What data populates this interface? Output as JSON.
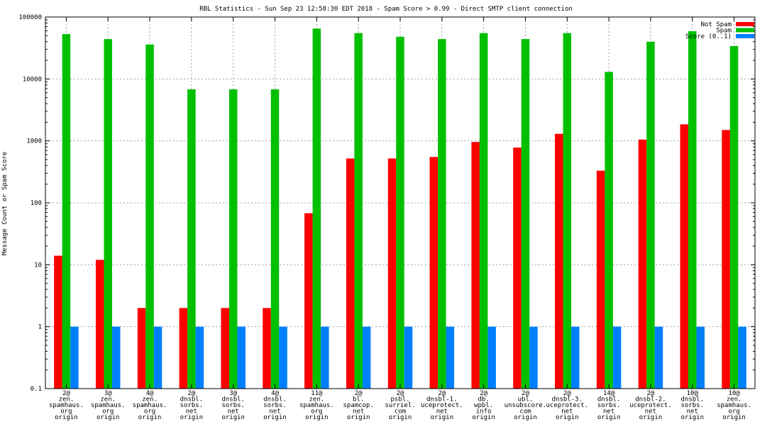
{
  "chart_data": {
    "type": "bar",
    "title": "RBL Statistics - Sun Sep 23 12:58:30 EDT 2018 - Spam Score > 0.99 - Direct SMTP client connection",
    "ylabel": "Message Count or Spam Score",
    "xlabel": "",
    "yscale": "log",
    "ylim": [
      0.1,
      100000
    ],
    "yticks": [
      "0.1",
      "1",
      "10",
      "100",
      "1000",
      "10000",
      "100000"
    ],
    "grid": true,
    "legend_position": "top-right",
    "categories": [
      [
        "2@",
        "zen.",
        "spamhaus.",
        "org",
        "origin"
      ],
      [
        "3@",
        "zen.",
        "spamhaus.",
        "org",
        "origin"
      ],
      [
        "4@",
        "zen.",
        "spamhaus.",
        "org",
        "origin"
      ],
      [
        "2@",
        "dnsbl.",
        "sorbs.",
        "net",
        "origin"
      ],
      [
        "3@",
        "dnsbl.",
        "sorbs.",
        "net",
        "origin"
      ],
      [
        "4@",
        "dnsbl.",
        "sorbs.",
        "net",
        "origin"
      ],
      [
        "11@",
        "zen.",
        "spamhaus.",
        "org",
        "origin"
      ],
      [
        "2@",
        "bl.",
        "spamcop.",
        "net",
        "origin"
      ],
      [
        "2@",
        "psbl.",
        "surriel.",
        "com",
        "origin"
      ],
      [
        "2@",
        "dnsbl-1.",
        "uceprotect.",
        "net",
        "origin"
      ],
      [
        "2@",
        "db.",
        "wpbl.",
        "info",
        "origin"
      ],
      [
        "2@",
        "ubl.",
        "unsubscore.",
        "com",
        "origin"
      ],
      [
        "2@",
        "dnsbl-3.",
        "uceprotect.",
        "net",
        "origin"
      ],
      [
        "14@",
        "dnsbl.",
        "sorbs.",
        "net",
        "origin"
      ],
      [
        "2@",
        "dnsbl-2.",
        "uceprotect.",
        "net",
        "origin"
      ],
      [
        "10@",
        "dnsbl.",
        "sorbs.",
        "net",
        "origin"
      ],
      [
        "10@",
        "zen.",
        "spamhaus.",
        "org",
        "origin"
      ]
    ],
    "series": [
      {
        "name": "Not Spam",
        "color": "#ff0000",
        "values": [
          14,
          12,
          2,
          2,
          2,
          2,
          68,
          520,
          520,
          550,
          960,
          780,
          1300,
          330,
          1050,
          1850,
          1500
        ]
      },
      {
        "name": "Spam",
        "color": "#00c000",
        "values": [
          53000,
          44000,
          36000,
          6800,
          6800,
          6800,
          65000,
          55000,
          48000,
          44000,
          55000,
          44000,
          55000,
          13000,
          40000,
          59000,
          34000
        ]
      },
      {
        "name": "Score (0..1)",
        "color": "#0080ff",
        "values": [
          1,
          1,
          1,
          1,
          1,
          1,
          1,
          1,
          1,
          1,
          1,
          1,
          1,
          1,
          1,
          1,
          1
        ]
      }
    ]
  }
}
